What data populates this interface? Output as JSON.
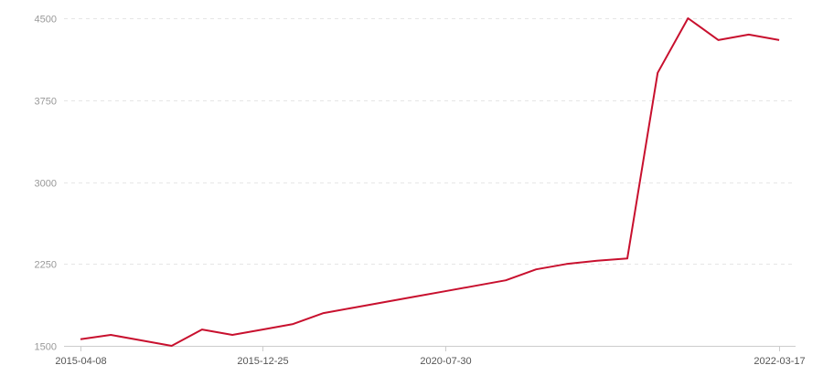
{
  "chart_data": {
    "type": "line",
    "title": "",
    "xlabel": "",
    "ylabel": "",
    "ylim": [
      1500,
      4500
    ],
    "y_ticks": [
      1500,
      2250,
      3000,
      3750,
      4500
    ],
    "grid": "horizontal dashed",
    "legend": "none",
    "line_color": "#c8102e",
    "x_tick_labels": [
      {
        "index": 0,
        "label": "2015-04-08"
      },
      {
        "index": 6,
        "label": "2015-12-25"
      },
      {
        "index": 12,
        "label": "2020-07-30"
      },
      {
        "index": 23,
        "label": "2022-03-17"
      }
    ],
    "values": [
      1560,
      1600,
      1550,
      1500,
      1650,
      1600,
      1650,
      1700,
      1800,
      1850,
      1900,
      1950,
      2000,
      2050,
      2100,
      2200,
      2250,
      2280,
      2300,
      4000,
      4500,
      4300,
      4350,
      4300
    ]
  }
}
